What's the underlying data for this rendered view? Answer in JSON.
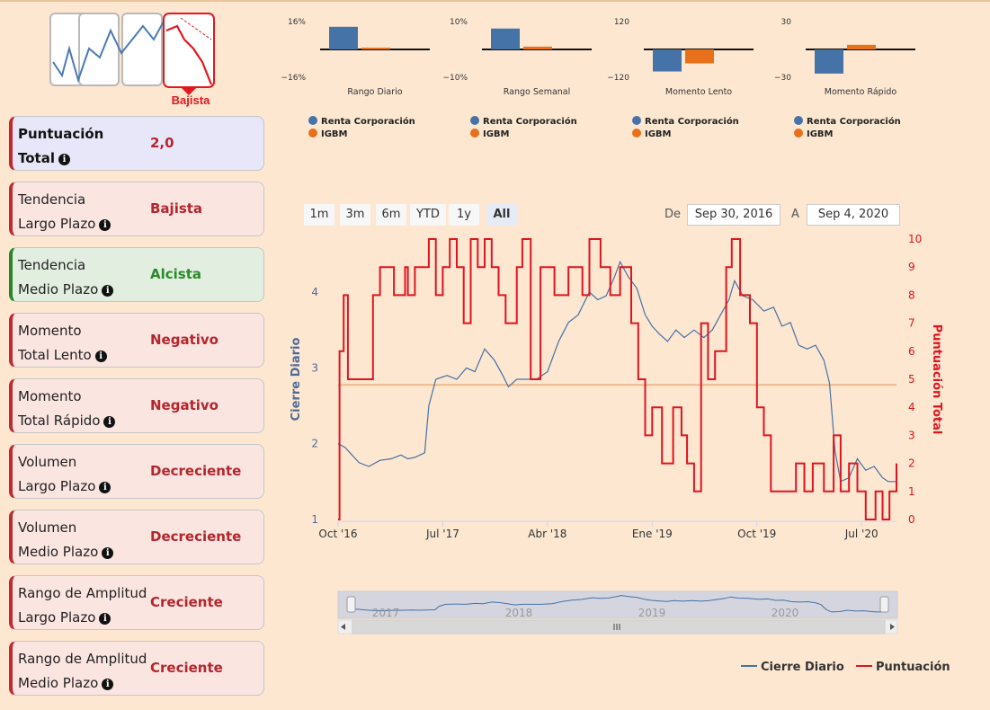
{
  "trend": {
    "label": "Bajista"
  },
  "cards": [
    {
      "line1": "Puntuación",
      "line2": "Total",
      "value": "2,0",
      "style": "blue"
    },
    {
      "line1": "Tendencia",
      "line2": "Largo Plazo",
      "value": "Bajista",
      "style": "red"
    },
    {
      "line1": "Tendencia",
      "line2": "Medio Plazo",
      "value": "Alcista",
      "style": "green"
    },
    {
      "line1": "Momento",
      "line2": "Total Lento",
      "value": "Negativo",
      "style": "red"
    },
    {
      "line1": "Momento",
      "line2": "Total Rápido",
      "value": "Negativo",
      "style": "red"
    },
    {
      "line1": "Volumen",
      "line2": "Largo Plazo",
      "value": "Decreciente",
      "style": "red"
    },
    {
      "line1": "Volumen",
      "line2": "Medio Plazo",
      "value": "Decreciente",
      "style": "red"
    },
    {
      "line1": "Rango de Amplitud",
      "line2": "Largo Plazo",
      "value": "Creciente",
      "style": "red"
    },
    {
      "line1": "Rango de Amplitud",
      "line2": "Medio Plazo",
      "value": "Creciente",
      "style": "red"
    }
  ],
  "mini_charts": [
    {
      "title": "Rango Diario",
      "ymax": "16%",
      "ymin": "−16%",
      "max": 16,
      "company": 13,
      "index": 1
    },
    {
      "title": "Rango Semanal",
      "ymax": "10%",
      "ymin": "−10%",
      "max": 10,
      "company": 7.5,
      "index": 1
    },
    {
      "title": "Momento Lento",
      "ymax": "120",
      "ymin": "−120",
      "max": 120,
      "company": -95,
      "index": -60
    },
    {
      "title": "Momento Rápido",
      "ymax": "30",
      "ymin": "−30",
      "max": 30,
      "company": -26,
      "index": 5
    }
  ],
  "mini_legend": {
    "company": "Renta Corporación",
    "index": "IGBM"
  },
  "colors": {
    "company": "#4572a7",
    "index": "#e8701a",
    "score": "#e0141e",
    "accent": "#b3262c",
    "green": "#2a8a2a"
  },
  "range_buttons": [
    "1m",
    "3m",
    "6m",
    "YTD",
    "1y",
    "All"
  ],
  "range_active": "All",
  "date_from_label": "De",
  "date_to_label": "A",
  "date_from": "Sep 30, 2016",
  "date_to": "Sep 4, 2020",
  "chart_data": {
    "type": "line",
    "title": "",
    "left_axis": {
      "label": "Cierre Diario",
      "ticks": [
        "1",
        "2",
        "3",
        "4"
      ],
      "range": [
        1,
        4.7
      ]
    },
    "right_axis": {
      "label": "Puntuación Total",
      "ticks": [
        "0",
        "1",
        "2",
        "3",
        "4",
        "5",
        "6",
        "7",
        "8",
        "9",
        "10"
      ],
      "range": [
        0,
        10
      ]
    },
    "x_ticks": [
      {
        "label": "Oct '16",
        "t": 0
      },
      {
        "label": "Jul '17",
        "t": 0.75
      },
      {
        "label": "Abr '18",
        "t": 1.5
      },
      {
        "label": "Ene '19",
        "t": 2.25
      },
      {
        "label": "Oct '19",
        "t": 3.0
      },
      {
        "label": "Jul '20",
        "t": 3.75
      }
    ],
    "navigator_years": [
      {
        "label": "2017",
        "t": 0.25
      },
      {
        "label": "2018",
        "t": 1.25
      },
      {
        "label": "2019",
        "t": 2.25
      },
      {
        "label": "2020",
        "t": 3.25
      }
    ],
    "reference_line": {
      "score": 4.8
    },
    "series": [
      {
        "name": "Cierre Diario",
        "axis": "left",
        "points": [
          [
            0,
            2.0
          ],
          [
            0.05,
            1.95
          ],
          [
            0.1,
            1.85
          ],
          [
            0.15,
            1.75
          ],
          [
            0.22,
            1.7
          ],
          [
            0.3,
            1.78
          ],
          [
            0.38,
            1.8
          ],
          [
            0.45,
            1.85
          ],
          [
            0.5,
            1.8
          ],
          [
            0.55,
            1.82
          ],
          [
            0.62,
            1.88
          ],
          [
            0.65,
            2.5
          ],
          [
            0.7,
            2.85
          ],
          [
            0.78,
            2.9
          ],
          [
            0.85,
            2.85
          ],
          [
            0.92,
            3.0
          ],
          [
            0.98,
            2.95
          ],
          [
            1.05,
            3.25
          ],
          [
            1.12,
            3.1
          ],
          [
            1.18,
            2.9
          ],
          [
            1.22,
            2.75
          ],
          [
            1.28,
            2.85
          ],
          [
            1.35,
            2.85
          ],
          [
            1.42,
            2.85
          ],
          [
            1.5,
            2.95
          ],
          [
            1.58,
            3.35
          ],
          [
            1.65,
            3.6
          ],
          [
            1.72,
            3.7
          ],
          [
            1.8,
            4.0
          ],
          [
            1.86,
            3.9
          ],
          [
            1.92,
            3.95
          ],
          [
            1.98,
            4.2
          ],
          [
            2.02,
            4.4
          ],
          [
            2.08,
            4.2
          ],
          [
            2.14,
            4.05
          ],
          [
            2.2,
            3.7
          ],
          [
            2.25,
            3.55
          ],
          [
            2.3,
            3.45
          ],
          [
            2.36,
            3.35
          ],
          [
            2.42,
            3.5
          ],
          [
            2.48,
            3.4
          ],
          [
            2.55,
            3.5
          ],
          [
            2.62,
            3.4
          ],
          [
            2.68,
            3.5
          ],
          [
            2.74,
            3.7
          ],
          [
            2.8,
            3.9
          ],
          [
            2.84,
            4.15
          ],
          [
            2.9,
            3.95
          ],
          [
            2.97,
            3.9
          ],
          [
            3.05,
            3.75
          ],
          [
            3.12,
            3.8
          ],
          [
            3.18,
            3.55
          ],
          [
            3.24,
            3.6
          ],
          [
            3.3,
            3.3
          ],
          [
            3.36,
            3.25
          ],
          [
            3.42,
            3.3
          ],
          [
            3.48,
            3.1
          ],
          [
            3.52,
            2.8
          ],
          [
            3.56,
            1.9
          ],
          [
            3.6,
            1.5
          ],
          [
            3.66,
            1.55
          ],
          [
            3.72,
            1.8
          ],
          [
            3.78,
            1.65
          ],
          [
            3.84,
            1.7
          ],
          [
            3.9,
            1.55
          ],
          [
            3.94,
            1.5
          ],
          [
            4.0,
            1.5
          ]
        ]
      },
      {
        "name": "Puntuación",
        "axis": "right",
        "points": [
          [
            0,
            0
          ],
          [
            0.01,
            6
          ],
          [
            0.04,
            8
          ],
          [
            0.07,
            5
          ],
          [
            0.2,
            5
          ],
          [
            0.25,
            8
          ],
          [
            0.3,
            9
          ],
          [
            0.4,
            8
          ],
          [
            0.48,
            9
          ],
          [
            0.5,
            8
          ],
          [
            0.55,
            9
          ],
          [
            0.65,
            10
          ],
          [
            0.7,
            8
          ],
          [
            0.75,
            9
          ],
          [
            0.8,
            10
          ],
          [
            0.85,
            9
          ],
          [
            0.9,
            7
          ],
          [
            0.95,
            10
          ],
          [
            1.0,
            9
          ],
          [
            1.05,
            10
          ],
          [
            1.1,
            9
          ],
          [
            1.15,
            8
          ],
          [
            1.2,
            7
          ],
          [
            1.28,
            9
          ],
          [
            1.32,
            10
          ],
          [
            1.38,
            5
          ],
          [
            1.45,
            9
          ],
          [
            1.5,
            9
          ],
          [
            1.55,
            8
          ],
          [
            1.65,
            9
          ],
          [
            1.75,
            8
          ],
          [
            1.8,
            10
          ],
          [
            1.88,
            9
          ],
          [
            1.95,
            8
          ],
          [
            2.02,
            9
          ],
          [
            2.1,
            7
          ],
          [
            2.15,
            5
          ],
          [
            2.2,
            3
          ],
          [
            2.25,
            4
          ],
          [
            2.32,
            2
          ],
          [
            2.4,
            4
          ],
          [
            2.46,
            3
          ],
          [
            2.5,
            2
          ],
          [
            2.55,
            1
          ],
          [
            2.6,
            7
          ],
          [
            2.65,
            5
          ],
          [
            2.7,
            6
          ],
          [
            2.78,
            9
          ],
          [
            2.82,
            10
          ],
          [
            2.88,
            8
          ],
          [
            2.95,
            7
          ],
          [
            3.0,
            4
          ],
          [
            3.05,
            3
          ],
          [
            3.1,
            1
          ],
          [
            3.2,
            1
          ],
          [
            3.28,
            2
          ],
          [
            3.34,
            1
          ],
          [
            3.4,
            2
          ],
          [
            3.48,
            1
          ],
          [
            3.55,
            3
          ],
          [
            3.6,
            1
          ],
          [
            3.66,
            2
          ],
          [
            3.72,
            1
          ],
          [
            3.78,
            0
          ],
          [
            3.85,
            1
          ],
          [
            3.9,
            0
          ],
          [
            3.95,
            1
          ],
          [
            4.0,
            2
          ]
        ]
      }
    ]
  },
  "legend": {
    "close": "Cierre Diario",
    "score": "Puntuación"
  }
}
